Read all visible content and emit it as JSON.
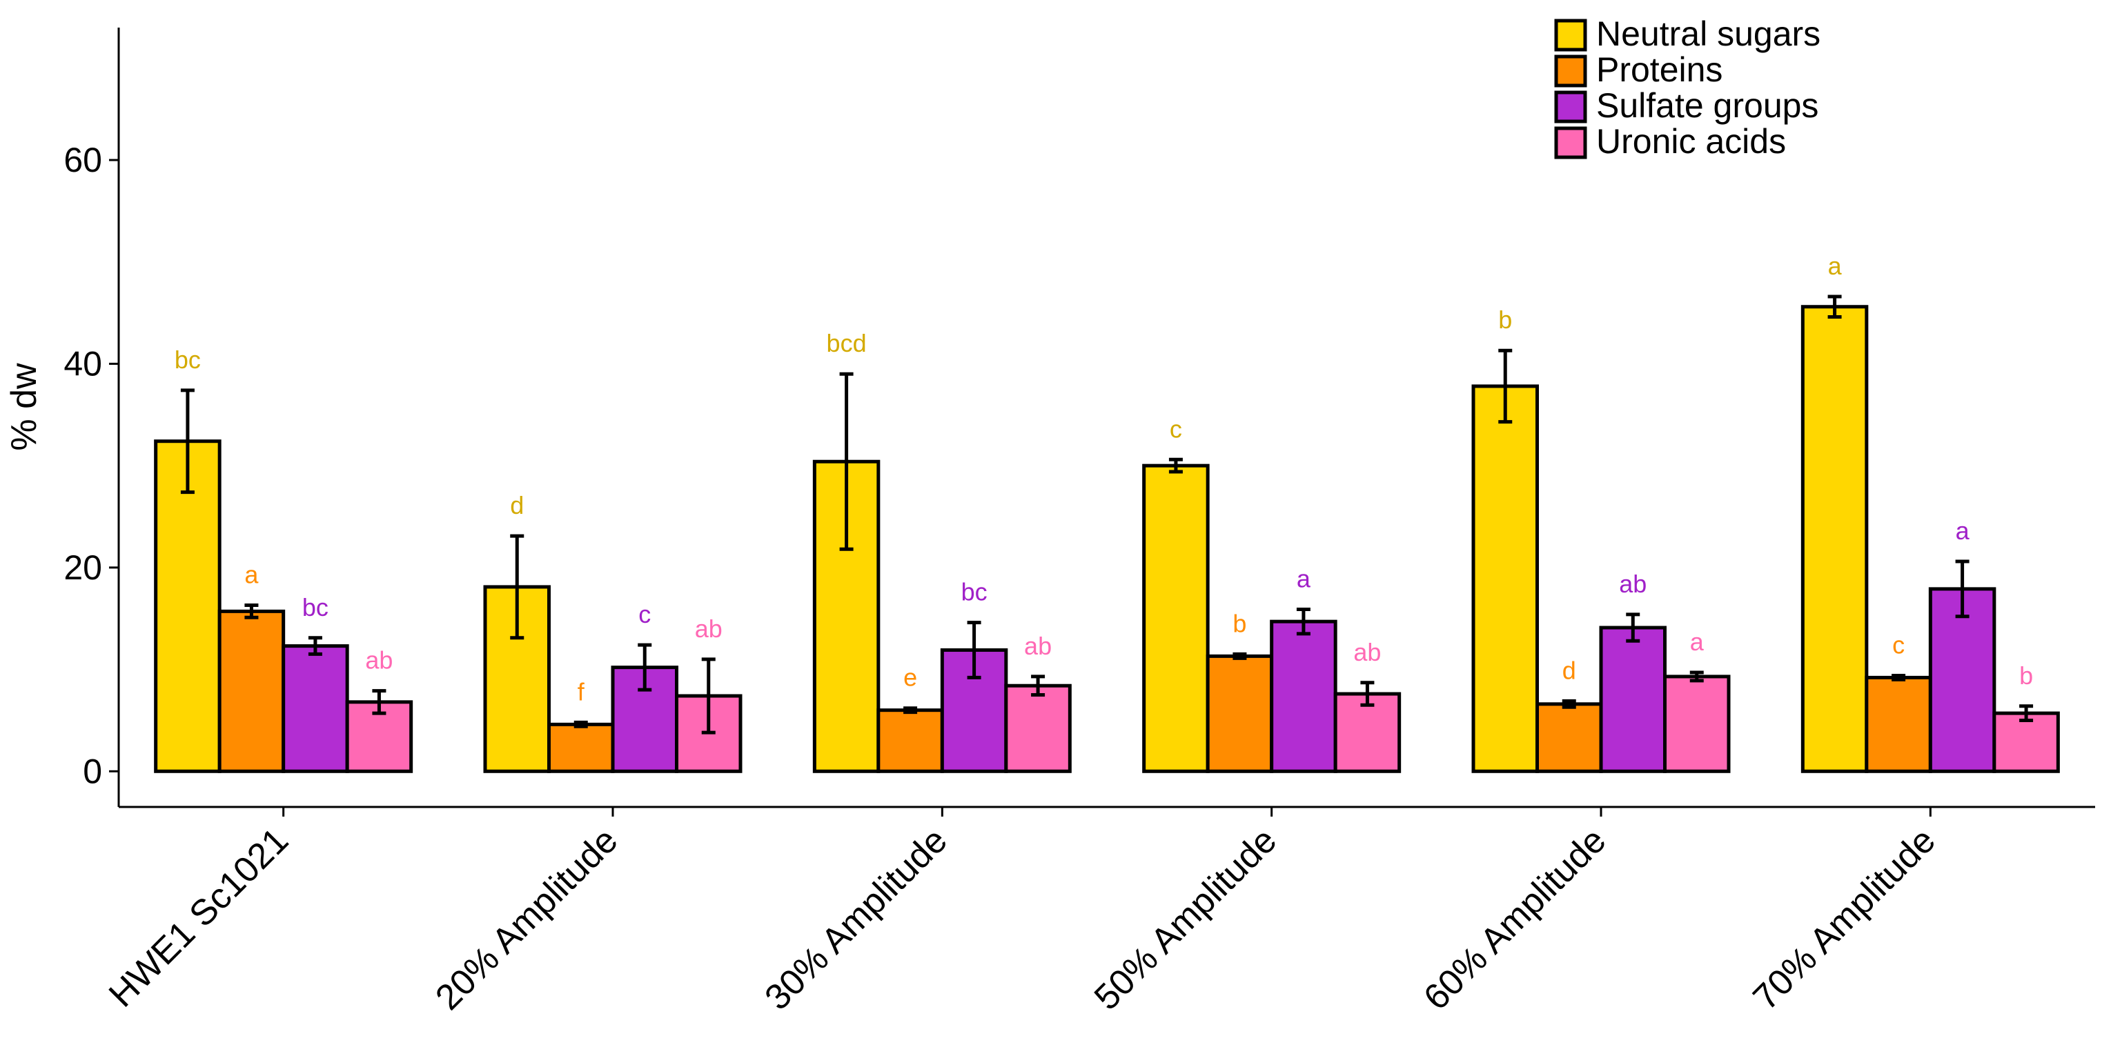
{
  "chart_data": {
    "type": "bar",
    "title": "",
    "xlabel": "",
    "ylabel": "% dw",
    "ylim": [
      -3.5,
      73
    ],
    "yticks": [
      0,
      20,
      40,
      60
    ],
    "grid": false,
    "legend_position": "top-right",
    "categories": [
      "HWE1 Sc1021",
      "20% Amplitude",
      "30% Amplitude",
      "50% Amplitude",
      "60% Amplitude",
      "70% Amplitude"
    ],
    "series": [
      {
        "name": "Neutral sugars",
        "color": "#FFD700",
        "label_color": "#D4AA00",
        "values": [
          32.4,
          18.1,
          30.4,
          30.0,
          37.8,
          45.6
        ],
        "errors": [
          5.0,
          5.0,
          8.6,
          0.6,
          3.5,
          1.0
        ],
        "letters": [
          "bc",
          "d",
          "bcd",
          "c",
          "b",
          "a"
        ]
      },
      {
        "name": "Proteins",
        "color": "#FF8C00",
        "label_color": "#FF8C00",
        "values": [
          15.7,
          4.6,
          6.0,
          11.3,
          6.6,
          9.2
        ],
        "errors": [
          0.6,
          0.2,
          0.2,
          0.2,
          0.3,
          0.2
        ],
        "letters": [
          "a",
          "f",
          "e",
          "b",
          "d",
          "c"
        ]
      },
      {
        "name": "Sulfate groups",
        "color": "#B22DD2",
        "label_color": "#A020C8",
        "values": [
          12.3,
          10.2,
          11.9,
          14.7,
          14.1,
          17.9
        ],
        "errors": [
          0.8,
          2.2,
          2.7,
          1.2,
          1.3,
          2.7
        ],
        "letters": [
          "bc",
          "c",
          "bc",
          "a",
          "ab",
          "a"
        ]
      },
      {
        "name": "Uronic acids",
        "color": "#FF69B4",
        "label_color": "#FF69B4",
        "values": [
          6.8,
          7.4,
          8.4,
          7.6,
          9.3,
          5.7
        ],
        "errors": [
          1.1,
          3.6,
          0.9,
          1.1,
          0.4,
          0.7
        ],
        "letters": [
          "ab",
          "ab",
          "ab",
          "ab",
          "a",
          "b"
        ]
      }
    ]
  }
}
